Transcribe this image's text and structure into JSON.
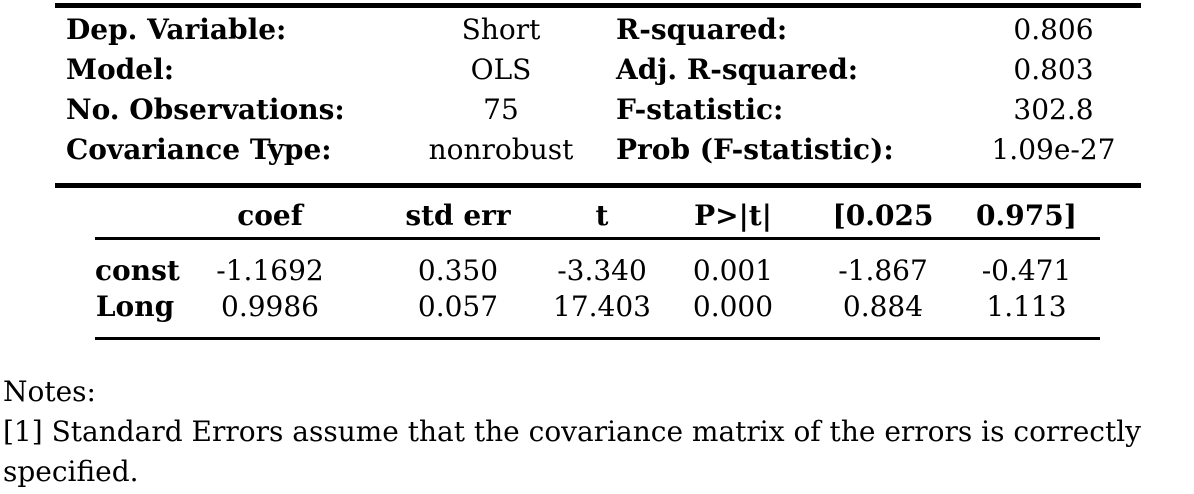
{
  "summary": {
    "info_rows": [
      {
        "label_left": "Dep. Variable:",
        "value_left": "Short",
        "label_right": "R-squared:",
        "value_right": "0.806"
      },
      {
        "label_left": "Model:",
        "value_left": "OLS",
        "label_right": "Adj. R-squared:",
        "value_right": "0.803"
      },
      {
        "label_left": "No. Observations:",
        "value_left": "75",
        "label_right": "F-statistic:",
        "value_right": "302.8"
      },
      {
        "label_left": "Covariance Type:",
        "value_left": "nonrobust",
        "label_right": "Prob (F-statistic):",
        "value_right": "1.09e-27"
      }
    ],
    "coef_table": {
      "headers": [
        "",
        "coef",
        "std err",
        "t",
        "P>|t|",
        "[0.025",
        "0.975]"
      ],
      "rows": [
        {
          "name": "const",
          "coef": "-1.1692",
          "std_err": "0.350",
          "t": "-3.340",
          "p": "0.001",
          "ci_low": "-1.867",
          "ci_high": "-0.471"
        },
        {
          "name": "Long",
          "coef": "0.9986",
          "std_err": "0.057",
          "t": "17.403",
          "p": "0.000",
          "ci_low": "0.884",
          "ci_high": "1.113"
        }
      ]
    },
    "notes": [
      "Notes:",
      "[1] Standard Errors assume that the covariance matrix of the errors is correctly",
      "specified."
    ]
  },
  "colors": {
    "text": "#000000",
    "background": "#ffffff",
    "rule": "#000000"
  }
}
